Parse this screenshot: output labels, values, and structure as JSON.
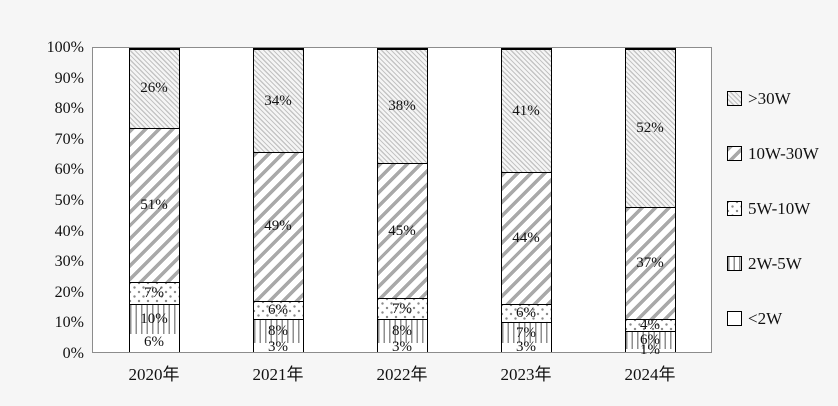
{
  "chart_data": {
    "type": "bar",
    "variant": "stacked-100",
    "title": "",
    "xlabel": "",
    "ylabel": "",
    "ylim": [
      0,
      100
    ],
    "grid": false,
    "legend_position": "right",
    "categories": [
      "2020年",
      "2021年",
      "2022年",
      "2023年",
      "2024年"
    ],
    "y_ticks": [
      "100%",
      "90%",
      "80%",
      "70%",
      "60%",
      "50%",
      "40%",
      "30%",
      "20%",
      "10%",
      "0%"
    ],
    "series": [
      {
        "name": "<2W",
        "pattern": "plain",
        "values": [
          6,
          3,
          3,
          3,
          1
        ],
        "labels": [
          "6%",
          "3%",
          "3%",
          "3%",
          "1%"
        ]
      },
      {
        "name": "2W-5W",
        "pattern": "vlines",
        "values": [
          10,
          8,
          8,
          7,
          6
        ],
        "labels": [
          "10%",
          "8%",
          "8%",
          "7%",
          "6%"
        ]
      },
      {
        "name": "5W-10W",
        "pattern": "dots",
        "values": [
          7,
          6,
          7,
          6,
          4
        ],
        "labels": [
          "7%",
          "6%",
          "7%",
          "6%",
          "4%"
        ]
      },
      {
        "name": "10W-30W",
        "pattern": "diag-fwd",
        "values": [
          51,
          49,
          45,
          44,
          37
        ],
        "labels": [
          "51%",
          "49%",
          "45%",
          "44%",
          "37%"
        ]
      },
      {
        "name": ">30W",
        "pattern": "diag-back",
        "values": [
          26,
          34,
          38,
          41,
          52
        ],
        "labels": [
          "26%",
          "34%",
          "38%",
          "41%",
          "52%"
        ]
      }
    ],
    "legend": [
      {
        "label": ">30W",
        "pattern": "diag-back"
      },
      {
        "label": "10W-30W",
        "pattern": "diag-fwd"
      },
      {
        "label": "5W-10W",
        "pattern": "dots"
      },
      {
        "label": "2W-5W",
        "pattern": "vlines"
      },
      {
        "label": "<2W",
        "pattern": "plain"
      }
    ],
    "colors": {
      "bar_border": "#000000",
      "plot_border": "#8c8c8c",
      "hatch_light": "#c4c4c4",
      "hatch_dark": "#a9a9a9",
      "text": "#111111",
      "background": "#f6f6f6"
    }
  }
}
